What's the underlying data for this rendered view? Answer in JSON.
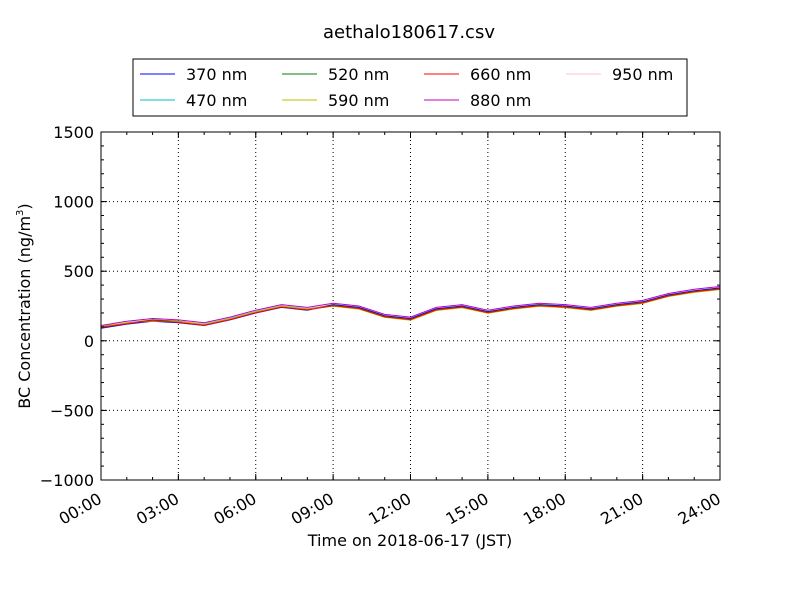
{
  "chart_data": {
    "type": "line",
    "title": "aethalo180617.csv",
    "xlabel": "Time on 2018-06-17 (JST)",
    "ylabel_main": "BC Concentration (ng/m",
    "ylabel_sup": "3",
    "ylabel_tail": ")",
    "xlim": [
      "00:00",
      "24:00"
    ],
    "ylim": [
      -1000,
      1500
    ],
    "x_ticks": [
      "00:00",
      "03:00",
      "06:00",
      "09:00",
      "12:00",
      "15:00",
      "18:00",
      "21:00",
      "24:00"
    ],
    "y_ticks": [
      "1500",
      "1000",
      "500",
      "0",
      "−500",
      "−1000"
    ],
    "y_tick_values": [
      1500,
      1000,
      500,
      0,
      -500,
      -1000
    ],
    "grid": "dotted",
    "legend_position": "top",
    "series": [
      {
        "name": "370 nm",
        "color": "#0000ff",
        "x": [
          "00:00",
          "01:00",
          "02:00",
          "03:00",
          "04:00",
          "05:00",
          "06:00",
          "07:00",
          "08:00",
          "09:00",
          "10:00",
          "11:00",
          "12:00",
          "13:00",
          "14:00",
          "15:00",
          "16:00",
          "17:00",
          "18:00",
          "19:00",
          "20:00",
          "21:00",
          "22:00",
          "23:00",
          "24:00"
        ],
        "y": [
          90,
          120,
          140,
          130,
          110,
          150,
          200,
          240,
          220,
          260,
          240,
          180,
          160,
          230,
          250,
          210,
          240,
          260,
          250,
          230,
          260,
          280,
          330,
          360,
          380
        ]
      },
      {
        "name": "470 nm",
        "color": "#00bfbf",
        "x": [
          "00:00",
          "01:00",
          "02:00",
          "03:00",
          "04:00",
          "05:00",
          "06:00",
          "07:00",
          "08:00",
          "09:00",
          "10:00",
          "11:00",
          "12:00",
          "13:00",
          "14:00",
          "15:00",
          "16:00",
          "17:00",
          "18:00",
          "19:00",
          "20:00",
          "21:00",
          "22:00",
          "23:00",
          "24:00"
        ],
        "y": [
          100,
          130,
          145,
          135,
          120,
          160,
          210,
          250,
          230,
          250,
          230,
          170,
          150,
          220,
          240,
          200,
          230,
          250,
          240,
          220,
          250,
          270,
          320,
          350,
          370
        ]
      },
      {
        "name": "520 nm",
        "color": "#008000",
        "x": [
          "00:00",
          "01:00",
          "02:00",
          "03:00",
          "04:00",
          "05:00",
          "06:00",
          "07:00",
          "08:00",
          "09:00",
          "10:00",
          "11:00",
          "12:00",
          "13:00",
          "14:00",
          "15:00",
          "16:00",
          "17:00",
          "18:00",
          "19:00",
          "20:00",
          "21:00",
          "22:00",
          "23:00",
          "24:00"
        ],
        "y": [
          95,
          125,
          150,
          140,
          115,
          155,
          205,
          245,
          225,
          255,
          235,
          175,
          155,
          225,
          245,
          205,
          235,
          255,
          245,
          225,
          255,
          275,
          325,
          355,
          375
        ]
      },
      {
        "name": "590 nm",
        "color": "#bfbf00",
        "x": [
          "00:00",
          "01:00",
          "02:00",
          "03:00",
          "04:00",
          "05:00",
          "06:00",
          "07:00",
          "08:00",
          "09:00",
          "10:00",
          "11:00",
          "12:00",
          "13:00",
          "14:00",
          "15:00",
          "16:00",
          "17:00",
          "18:00",
          "19:00",
          "20:00",
          "21:00",
          "22:00",
          "23:00",
          "24:00"
        ],
        "y": [
          105,
          128,
          142,
          138,
          118,
          158,
          208,
          248,
          228,
          248,
          228,
          168,
          148,
          218,
          238,
          198,
          228,
          248,
          238,
          218,
          248,
          268,
          318,
          348,
          368
        ]
      },
      {
        "name": "660 nm",
        "color": "#ff0000",
        "x": [
          "00:00",
          "01:00",
          "02:00",
          "03:00",
          "04:00",
          "05:00",
          "06:00",
          "07:00",
          "08:00",
          "09:00",
          "10:00",
          "11:00",
          "12:00",
          "13:00",
          "14:00",
          "15:00",
          "16:00",
          "17:00",
          "18:00",
          "19:00",
          "20:00",
          "21:00",
          "22:00",
          "23:00",
          "24:00"
        ],
        "y": [
          98,
          122,
          148,
          132,
          112,
          152,
          202,
          242,
          222,
          252,
          232,
          172,
          152,
          222,
          242,
          202,
          232,
          252,
          242,
          222,
          252,
          272,
          322,
          352,
          372
        ]
      },
      {
        "name": "880 nm",
        "color": "#bf00bf",
        "x": [
          "00:00",
          "01:00",
          "02:00",
          "03:00",
          "04:00",
          "05:00",
          "06:00",
          "07:00",
          "08:00",
          "09:00",
          "10:00",
          "11:00",
          "12:00",
          "13:00",
          "14:00",
          "15:00",
          "16:00",
          "17:00",
          "18:00",
          "19:00",
          "20:00",
          "21:00",
          "22:00",
          "23:00",
          "24:00"
        ],
        "y": [
          110,
          140,
          160,
          150,
          130,
          170,
          220,
          260,
          240,
          270,
          250,
          190,
          170,
          240,
          260,
          220,
          250,
          270,
          260,
          240,
          270,
          290,
          340,
          370,
          390
        ]
      },
      {
        "name": "950 nm",
        "color": "#ffc0cb",
        "x": [
          "00:00",
          "01:00",
          "02:00",
          "03:00",
          "04:00",
          "05:00",
          "06:00",
          "07:00",
          "08:00",
          "09:00",
          "10:00",
          "11:00",
          "12:00",
          "13:00",
          "14:00",
          "15:00",
          "16:00",
          "17:00",
          "18:00",
          "19:00",
          "20:00",
          "21:00",
          "22:00",
          "23:00",
          "24:00"
        ],
        "y": [
          100,
          130,
          150,
          140,
          120,
          160,
          210,
          250,
          230,
          260,
          240,
          180,
          160,
          230,
          250,
          210,
          240,
          260,
          250,
          230,
          260,
          280,
          330,
          360,
          380
        ]
      }
    ]
  }
}
